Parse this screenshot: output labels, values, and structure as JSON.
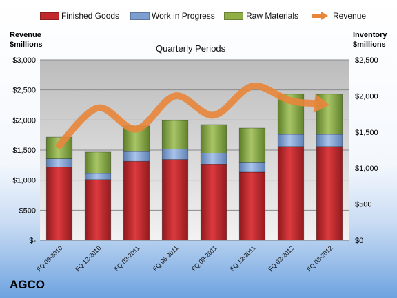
{
  "chart_data": {
    "type": "bar",
    "stacked": true,
    "categories": [
      "FQ 09-2010",
      "FQ 12-2010",
      "FQ 03-2011",
      "FQ 06-2011",
      "FQ 09-2011",
      "FQ 12-2011",
      "FQ 03-2012",
      "FQ 03-2012"
    ],
    "series": [
      {
        "name": "Finished Goods",
        "axis": "right",
        "color": "#c0282d",
        "values": [
          1015,
          842,
          1095,
          1120,
          1048,
          945,
          1300,
          1300
        ]
      },
      {
        "name": "Work in Progress",
        "axis": "right",
        "color": "#7d9fd0",
        "values": [
          115,
          85,
          135,
          145,
          160,
          130,
          170,
          170
        ]
      },
      {
        "name": "Raw Materials",
        "axis": "right",
        "color": "#8fae48",
        "values": [
          300,
          295,
          355,
          395,
          395,
          480,
          555,
          555
        ]
      },
      {
        "name": "Revenue",
        "type": "line",
        "axis": "left",
        "color": "#e8863a",
        "values": [
          1580,
          2200,
          1850,
          2400,
          2080,
          2560,
          2320,
          2250
        ]
      }
    ],
    "subtitle": "Quarterly Periods",
    "y_left_label": "Revenue $millions",
    "y_right_label": "Inventory $millions",
    "y_left_range": [
      0,
      3000
    ],
    "y_right_range": [
      0,
      2500
    ],
    "y_left_ticks": [
      "$-",
      "$500",
      "$1,000",
      "$1,500",
      "$2,000",
      "$2,500",
      "$3,000"
    ],
    "y_right_ticks": [
      "$0",
      "$500",
      "$1,000",
      "$1,500",
      "$2,000",
      "$2,500"
    ],
    "grid": true,
    "legend_position": "top"
  },
  "company": "AGCO"
}
